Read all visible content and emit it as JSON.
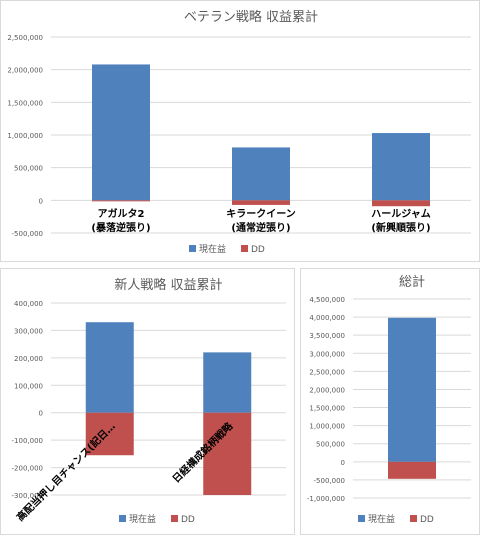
{
  "chart_data": [
    {
      "type": "bar",
      "title": "ベテラン戦略 収益累計",
      "categories": [
        [
          "アガルタ2",
          "(暴落逆張り)"
        ],
        [
          "キラークイーン",
          "(通常逆張り)"
        ],
        [
          "ハールジャム",
          "(新興順張り)"
        ]
      ],
      "series": [
        {
          "name": "現在益",
          "color": "#4f81bd",
          "values": [
            2080000,
            810000,
            1030000
          ]
        },
        {
          "name": "DD",
          "color": "#c0504d",
          "values": [
            -5000,
            -70000,
            -90000
          ]
        }
      ],
      "ylim": [
        -500000,
        2500000
      ],
      "yticks": [
        -500000,
        0,
        500000,
        1000000,
        1500000,
        2000000,
        2500000
      ],
      "ytick_labels": [
        "-500,000",
        "0",
        "500,000",
        "1,000,000",
        "1,500,000",
        "2,000,000",
        "2,500,000"
      ],
      "legend": "bottom"
    },
    {
      "type": "bar",
      "title": "新人戦略 収益累計",
      "categories": [
        [
          "高配当押し目チャンス(記日…"
        ],
        [
          "日経構成銘柄戦略"
        ]
      ],
      "series": [
        {
          "name": "現在益",
          "color": "#4f81bd",
          "values": [
            330000,
            220000
          ]
        },
        {
          "name": "DD",
          "color": "#c0504d",
          "values": [
            -155000,
            -300000
          ]
        }
      ],
      "ylim": [
        -300000,
        400000
      ],
      "yticks": [
        -300000,
        -200000,
        -100000,
        0,
        100000,
        200000,
        300000,
        400000
      ],
      "ytick_labels": [
        "-300,000",
        "-200,000",
        "-100,000",
        "0",
        "100,000",
        "200,000",
        "300,000",
        "400,000"
      ],
      "legend": "bottom"
    },
    {
      "type": "bar",
      "title": "総計",
      "categories": [
        [
          ""
        ]
      ],
      "series": [
        {
          "name": "現在益",
          "color": "#4f81bd",
          "values": [
            3980000
          ]
        },
        {
          "name": "DD",
          "color": "#c0504d",
          "values": [
            -470000
          ]
        }
      ],
      "ylim": [
        -1000000,
        4500000
      ],
      "yticks": [
        -1000000,
        -500000,
        0,
        500000,
        1000000,
        1500000,
        2000000,
        2500000,
        3000000,
        3500000,
        4000000,
        4500000
      ],
      "ytick_labels": [
        "-1,000,000",
        "-500,000",
        "0",
        "500,000",
        "1,000,000",
        "1,500,000",
        "2,000,000",
        "2,500,000",
        "3,000,000",
        "3,500,000",
        "4,000,000",
        "4,500,000"
      ],
      "legend": "bottom"
    }
  ]
}
